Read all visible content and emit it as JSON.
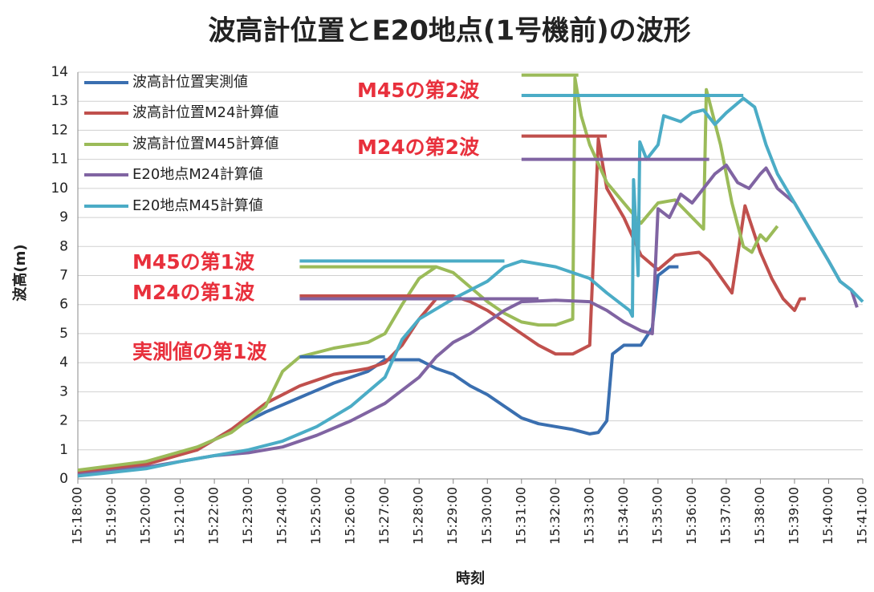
{
  "chart_data": {
    "type": "line",
    "title": "波高計位置とE20地点(1号機前)の波形",
    "x_label": "時刻",
    "y_label": "波高(m)",
    "xlim": [
      "15:18:00",
      "15:41:00"
    ],
    "xticks": [
      "15:18:00",
      "15:19:00",
      "15:20:00",
      "15:21:00",
      "15:22:00",
      "15:23:00",
      "15:24:00",
      "15:25:00",
      "15:26:00",
      "15:27:00",
      "15:28:00",
      "15:29:00",
      "15:30:00",
      "15:31:00",
      "15:32:00",
      "15:33:00",
      "15:34:00",
      "15:35:00",
      "15:36:00",
      "15:37:00",
      "15:38:00",
      "15:39:00",
      "15:40:00",
      "15:41:00"
    ],
    "ylim": [
      0,
      14
    ],
    "yticks": [
      0,
      1,
      2,
      3,
      4,
      5,
      6,
      7,
      8,
      9,
      10,
      11,
      12,
      13,
      14
    ],
    "grid": true,
    "legend": "upper left",
    "series": [
      {
        "name": "波高計位置実測値",
        "color": "#3a6fb0",
        "x": [
          "15:18:00",
          "15:20:00",
          "15:21:30",
          "15:22:30",
          "15:23:30",
          "15:24:30",
          "15:25:30",
          "15:26:30",
          "15:27:00",
          "15:28:00",
          "15:28:30",
          "15:29:00",
          "15:29:30",
          "15:30:00",
          "15:30:30",
          "15:31:00",
          "15:31:30",
          "15:32:00",
          "15:32:30",
          "15:33:00",
          "15:33:15",
          "15:33:30",
          "15:33:40",
          "15:34:00",
          "15:34:30",
          "15:34:50",
          "15:35:00",
          "15:35:20",
          "15:35:36"
        ],
        "values": [
          0.1,
          0.6,
          1.0,
          1.7,
          2.3,
          2.8,
          3.3,
          3.7,
          4.1,
          4.1,
          3.8,
          3.6,
          3.2,
          2.9,
          2.5,
          2.1,
          1.9,
          1.8,
          1.7,
          1.55,
          1.6,
          2.0,
          4.3,
          4.6,
          4.6,
          5.2,
          7.0,
          7.3,
          7.3
        ]
      },
      {
        "name": "波高計位置M24計算値",
        "color": "#c0504d",
        "x": [
          "15:18:00",
          "15:20:00",
          "15:21:30",
          "15:22:30",
          "15:23:30",
          "15:24:30",
          "15:25:30",
          "15:26:30",
          "15:27:00",
          "15:27:30",
          "15:28:00",
          "15:28:30",
          "15:29:00",
          "15:29:30",
          "15:30:00",
          "15:30:30",
          "15:31:00",
          "15:31:30",
          "15:32:00",
          "15:32:30",
          "15:33:00",
          "15:33:15",
          "15:33:30",
          "15:34:00",
          "15:34:30",
          "15:35:00",
          "15:35:30",
          "15:36:12",
          "15:36:30",
          "15:37:10",
          "15:37:33",
          "15:38:00",
          "15:38:20",
          "15:38:40",
          "15:39:00",
          "15:39:10",
          "15:39:20"
        ],
        "values": [
          0.2,
          0.5,
          1.0,
          1.7,
          2.6,
          3.2,
          3.6,
          3.8,
          4.0,
          4.6,
          5.5,
          6.2,
          6.3,
          6.1,
          5.8,
          5.4,
          5.0,
          4.6,
          4.3,
          4.3,
          4.6,
          11.7,
          10.0,
          9.0,
          7.7,
          7.2,
          7.7,
          7.8,
          7.5,
          6.4,
          9.4,
          7.8,
          6.9,
          6.2,
          5.8,
          6.2,
          6.2
        ]
      },
      {
        "name": "波高計位置M45計算値",
        "color": "#9bbb59",
        "x": [
          "15:18:00",
          "15:20:00",
          "15:21:30",
          "15:22:30",
          "15:23:30",
          "15:24:00",
          "15:24:30",
          "15:25:30",
          "15:26:30",
          "15:27:00",
          "15:27:30",
          "15:28:00",
          "15:28:30",
          "15:29:00",
          "15:29:30",
          "15:30:00",
          "15:30:30",
          "15:31:00",
          "15:31:30",
          "15:32:00",
          "15:32:30",
          "15:32:34",
          "15:32:45",
          "15:33:00",
          "15:33:30",
          "15:34:00",
          "15:34:30",
          "15:35:00",
          "15:35:30",
          "15:36:00",
          "15:36:20",
          "15:36:25",
          "15:36:50",
          "15:37:10",
          "15:37:30",
          "15:37:45",
          "15:38:00",
          "15:38:10",
          "15:38:30"
        ],
        "values": [
          0.3,
          0.6,
          1.1,
          1.6,
          2.5,
          3.7,
          4.2,
          4.5,
          4.7,
          5.0,
          6.0,
          6.9,
          7.3,
          7.1,
          6.6,
          6.1,
          5.7,
          5.4,
          5.3,
          5.3,
          5.5,
          13.8,
          12.5,
          11.5,
          10.2,
          9.5,
          8.8,
          9.5,
          9.6,
          9.0,
          8.6,
          13.4,
          11.5,
          9.5,
          8.0,
          7.8,
          8.4,
          8.2,
          8.7
        ]
      },
      {
        "name": "E20地点M24計算値",
        "color": "#8064a2",
        "x": [
          "15:18:00",
          "15:20:00",
          "15:21:00",
          "15:22:00",
          "15:23:00",
          "15:24:00",
          "15:25:00",
          "15:26:00",
          "15:27:00",
          "15:28:00",
          "15:28:30",
          "15:29:00",
          "15:29:30",
          "15:30:00",
          "15:30:30",
          "15:31:00",
          "15:32:00",
          "15:33:00",
          "15:33:30",
          "15:34:00",
          "15:34:30",
          "15:34:50",
          "15:35:00",
          "15:35:20",
          "15:35:40",
          "15:36:00",
          "15:36:20",
          "15:36:40",
          "15:37:00",
          "15:37:20",
          "15:37:40",
          "15:38:00",
          "15:38:10",
          "15:38:30",
          "15:39:00",
          "15:39:30",
          "15:40:00",
          "15:40:20",
          "15:40:40",
          "15:40:50"
        ],
        "values": [
          0.15,
          0.4,
          0.6,
          0.8,
          0.9,
          1.1,
          1.5,
          2.0,
          2.6,
          3.5,
          4.2,
          4.7,
          5.0,
          5.4,
          5.8,
          6.1,
          6.15,
          6.1,
          5.8,
          5.4,
          5.1,
          5.0,
          9.3,
          9.0,
          9.8,
          9.5,
          10.0,
          10.5,
          10.8,
          10.2,
          10.0,
          10.5,
          10.7,
          10.0,
          9.5,
          8.5,
          7.5,
          6.8,
          6.5,
          5.9
        ]
      },
      {
        "name": "E20地点M45計算値",
        "color": "#4bacc6",
        "x": [
          "15:18:00",
          "15:20:00",
          "15:21:00",
          "15:22:00",
          "15:23:00",
          "15:24:00",
          "15:25:00",
          "15:26:00",
          "15:27:00",
          "15:27:30",
          "15:28:00",
          "15:29:00",
          "15:30:00",
          "15:30:30",
          "15:31:00",
          "15:32:00",
          "15:33:00",
          "15:33:30",
          "15:34:10",
          "15:34:15",
          "15:34:17",
          "15:34:25",
          "15:34:28",
          "15:34:40",
          "15:35:00",
          "15:35:10",
          "15:35:40",
          "15:36:00",
          "15:36:20",
          "15:36:40",
          "15:37:00",
          "15:37:30",
          "15:37:50",
          "15:38:10",
          "15:38:30",
          "15:39:00",
          "15:39:30",
          "15:40:00",
          "15:40:20",
          "15:40:40",
          "15:41:00"
        ],
        "values": [
          0.1,
          0.35,
          0.6,
          0.8,
          1.0,
          1.3,
          1.8,
          2.5,
          3.5,
          4.8,
          5.5,
          6.2,
          6.8,
          7.3,
          7.5,
          7.3,
          6.9,
          6.4,
          5.8,
          5.6,
          10.3,
          7.0,
          11.6,
          11.0,
          11.5,
          12.5,
          12.3,
          12.6,
          12.7,
          12.2,
          12.6,
          13.1,
          12.8,
          11.5,
          10.5,
          9.5,
          8.5,
          7.5,
          6.8,
          6.5,
          6.1
        ]
      }
    ],
    "annotations": [
      {
        "text": "M45の第2波",
        "lines": [
          {
            "value": 13.9,
            "color": "#9bbb59",
            "x": [
              "15:31:00",
              "15:32:40"
            ]
          },
          {
            "value": 13.2,
            "color": "#4bacc6",
            "x": [
              "15:31:00",
              "15:37:30"
            ]
          }
        ]
      },
      {
        "text": "M24の第2波",
        "lines": [
          {
            "value": 11.8,
            "color": "#c0504d",
            "x": [
              "15:31:00",
              "15:33:30"
            ]
          },
          {
            "value": 11.0,
            "color": "#8064a2",
            "x": [
              "15:31:00",
              "15:36:30"
            ]
          }
        ]
      },
      {
        "text": "M45の第1波",
        "lines": [
          {
            "value": 7.5,
            "color": "#4bacc6",
            "x": [
              "15:24:30",
              "15:30:30"
            ]
          },
          {
            "value": 7.3,
            "color": "#9bbb59",
            "x": [
              "15:24:30",
              "15:28:30"
            ]
          }
        ]
      },
      {
        "text": "M24の第1波",
        "lines": [
          {
            "value": 6.3,
            "color": "#c0504d",
            "x": [
              "15:24:30",
              "15:29:00"
            ]
          },
          {
            "value": 6.2,
            "color": "#8064a2",
            "x": [
              "15:24:30",
              "15:31:30"
            ]
          }
        ]
      },
      {
        "text": "実測値の第1波",
        "lines": [
          {
            "value": 4.2,
            "color": "#3a6fb0",
            "x": [
              "15:24:30",
              "15:27:00"
            ]
          }
        ]
      }
    ]
  }
}
